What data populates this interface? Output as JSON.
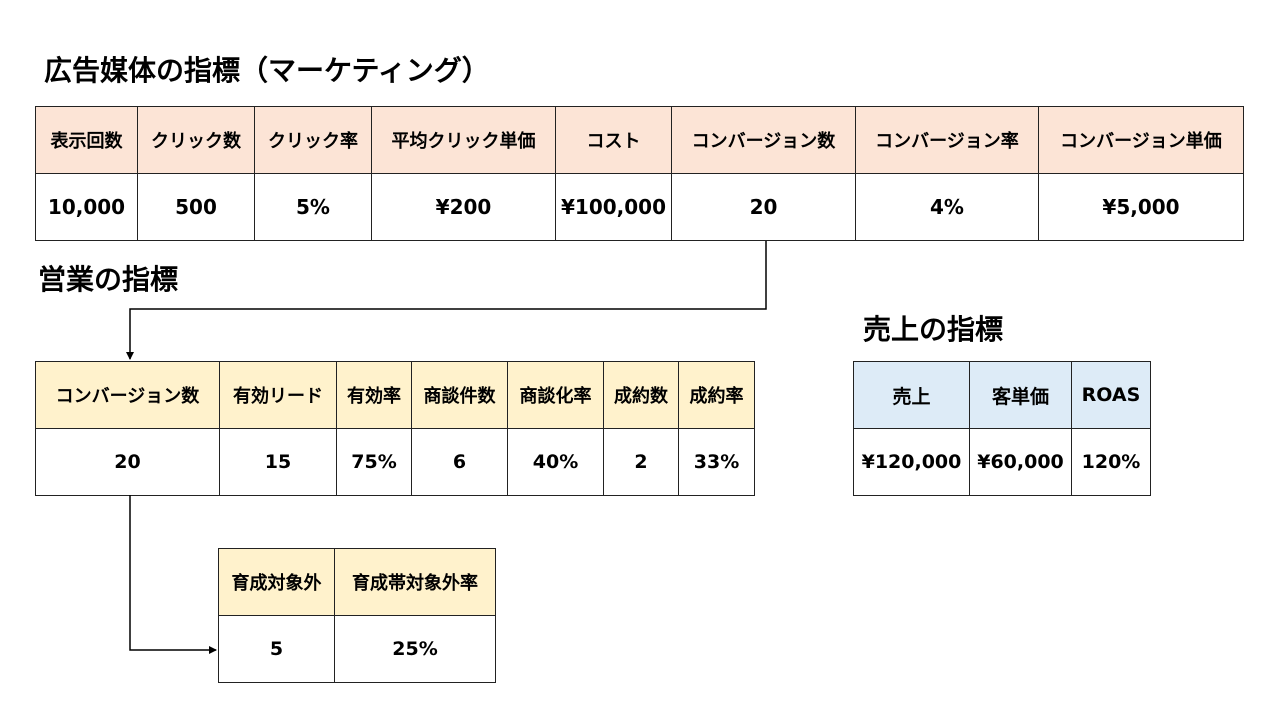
{
  "ad_section": {
    "title": "広告媒体の指標（マーケティング）",
    "headers": [
      "表示回数",
      "クリック数",
      "クリック率",
      "平均クリック単価",
      "コスト",
      "コンバージョン数",
      "コンバージョン率",
      "コンバージョン単価"
    ],
    "values": [
      "10,000",
      "500",
      "5%",
      "¥200",
      "¥100,000",
      "20",
      "4%",
      "¥5,000"
    ]
  },
  "sales_section": {
    "title": "営業の指標",
    "headers": [
      "コンバージョン数",
      "有効リード",
      "有効率",
      "商談件数",
      "商談化率",
      "成約数",
      "成約率"
    ],
    "values": [
      "20",
      "15",
      "75%",
      "6",
      "40%",
      "2",
      "33%"
    ]
  },
  "nurture_section": {
    "headers": [
      "育成対象外",
      "育成帯対象外率"
    ],
    "values": [
      "5",
      "25%"
    ]
  },
  "revenue_section": {
    "title": "売上の指標",
    "headers": [
      "売上",
      "客単価",
      "ROAS"
    ],
    "values": [
      "¥120,000",
      "¥60,000",
      "120%"
    ]
  },
  "colors": {
    "ad_header_bg": "#fce4d6",
    "sales_header_bg": "#fff2cc",
    "revenue_header_bg": "#ddebf7",
    "border": "#222222"
  }
}
